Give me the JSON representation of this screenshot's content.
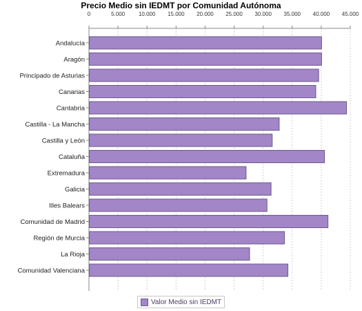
{
  "chart_data": {
    "type": "bar",
    "orientation": "horizontal",
    "title": "Precio Medio sin IEDMT por Comunidad Autónoma",
    "categories": [
      "Andalucía",
      "Aragón",
      "Principado de Asturias",
      "Canarias",
      "Cantabria",
      "Castilla - La Mancha",
      "Castilla y León",
      "Cataluña",
      "Extremadura",
      "Galicia",
      "Illes Balears",
      "Comunidad de Madrid",
      "Región de Murcia",
      "La Rioja",
      "Comunidad Valenciana"
    ],
    "series": [
      {
        "name": "Valor Medio sin IEDMT",
        "values": [
          40000,
          40000,
          39500,
          39000,
          44300,
          32700,
          31500,
          40500,
          27000,
          31300,
          30600,
          41100,
          33600,
          27600,
          34200
        ]
      }
    ],
    "xlim": [
      0,
      45000
    ],
    "x_ticks": [
      "0",
      "5.000",
      "10.000",
      "15.000",
      "20.000",
      "25.000",
      "30.000",
      "35.000",
      "40.000",
      "45.000"
    ],
    "x_axis_position": "top",
    "grid": "vertical dashed",
    "legend_position": "bottom-center",
    "bar_color": "#a286c8",
    "bar_border_color": "#6b5b8a",
    "legend_text_color": "#4b3c66"
  }
}
